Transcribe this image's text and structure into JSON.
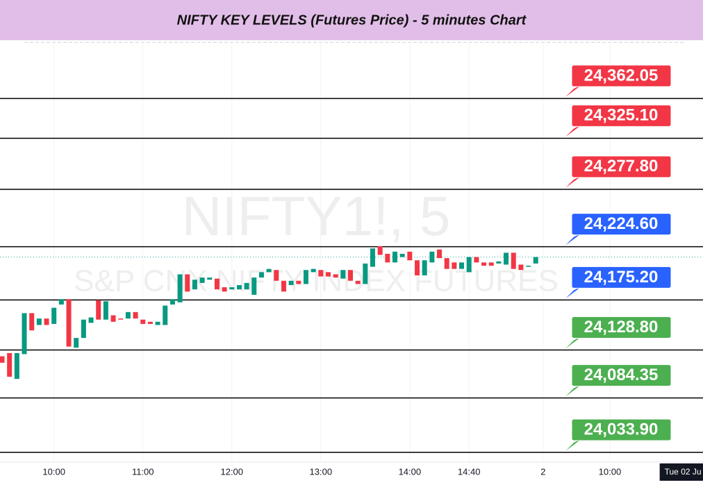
{
  "chart_data": {
    "type": "candlestick",
    "title": "NIFTY KEY LEVELS (Futures Price) - 5 minutes Chart",
    "watermark": "NIFTY1!, 5",
    "watermark_subtitle": "S&P CNX NIFTY INDEX FUTURES",
    "up_color": "#089981",
    "down_color": "#f23645",
    "ylim": [
      24025.6,
      24414.1
    ],
    "xlim": [
      0,
      94
    ],
    "grid": true,
    "last_price": 24215,
    "last_price_color": "#26a69a",
    "xticks": [
      {
        "value": 7,
        "label": "10:00"
      },
      {
        "value": 19,
        "label": "11:00"
      },
      {
        "value": 31,
        "label": "12:00"
      },
      {
        "value": 43,
        "label": "13:00"
      },
      {
        "value": 55,
        "label": "14:00"
      },
      {
        "value": 63,
        "label": "14:40"
      },
      {
        "value": 73,
        "label": "2"
      },
      {
        "value": 82,
        "label": "10:00"
      }
    ],
    "date_badge": {
      "value": 92,
      "label": "Tue 02 Ju"
    },
    "levels": [
      {
        "value": 24362.05,
        "label": "24,362.05",
        "color": "#f23645"
      },
      {
        "value": 24325.1,
        "label": "24,325.10",
        "color": "#f23645"
      },
      {
        "value": 24277.8,
        "label": "24,277.80",
        "color": "#f23645"
      },
      {
        "value": 24224.6,
        "label": "24,224.60",
        "color": "#2962ff"
      },
      {
        "value": 24175.2,
        "label": "24,175.20",
        "color": "#2962ff"
      },
      {
        "value": 24128.8,
        "label": "24,128.80",
        "color": "#4caf50"
      },
      {
        "value": 24084.35,
        "label": "24,084.35",
        "color": "#4caf50"
      },
      {
        "value": 24033.9,
        "label": "24,033.90",
        "color": "#4caf50"
      }
    ],
    "open": [
      24123,
      24126,
      24102,
      24125,
      24163,
      24152,
      24158,
      24153,
      24171,
      24176,
      24131,
      24140,
      24154,
      24175,
      24157,
      24161,
      24158,
      24158,
      24164,
      24157,
      24155,
      24152,
      24152,
      24171,
      24173,
      24199,
      24185,
      24191,
      24194,
      24195,
      24187,
      24185,
      24185,
      24185,
      24180,
      24196,
      24201,
      24203,
      24193,
      24189,
      24193,
      24190,
      24201,
      24203,
      24201,
      24199,
      24195,
      24203,
      24193,
      24190,
      24206,
      24225,
      24218,
      24210,
      24215,
      24220,
      24212,
      24198,
      24210,
      24222,
      24214,
      24210,
      24204,
      24201,
      24215,
      24210,
      24210,
      24209,
      24208,
      24219,
      24208,
      24206,
      24209
    ],
    "close": [
      24117,
      24104,
      24126,
      24163,
      24147,
      24158,
      24152,
      24168,
      24176,
      24132,
      24140,
      24157,
      24159,
      24157,
      24174,
      24155,
      24157,
      24164,
      24158,
      24153,
      24153,
      24155,
      24170,
      24176,
      24199,
      24183,
      24194,
      24196,
      24196,
      24185,
      24183,
      24187,
      24189,
      24191,
      24196,
      24201,
      24204,
      24193,
      24183,
      24193,
      24190,
      24203,
      24204,
      24197,
      24197,
      24196,
      24203,
      24193,
      24190,
      24209,
      24223,
      24217,
      24210,
      24220,
      24218,
      24212,
      24198,
      24212,
      24220,
      24214,
      24204,
      24204,
      24210,
      24215,
      24210,
      24207,
      24207,
      24211,
      24219,
      24204,
      24203,
      24207,
      24215
    ]
  }
}
